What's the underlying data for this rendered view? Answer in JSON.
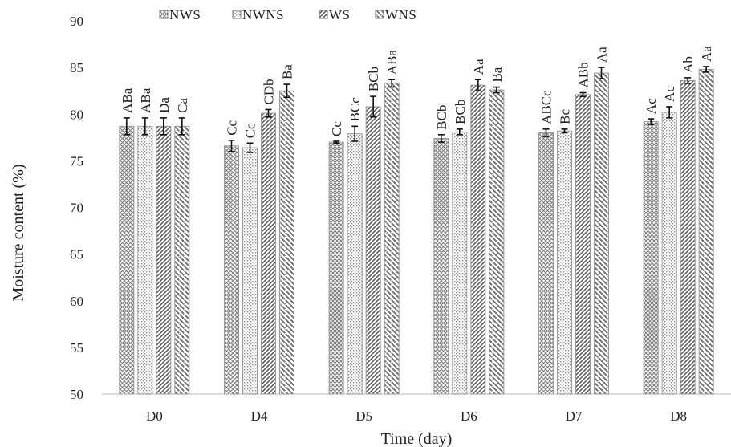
{
  "chart_data": {
    "type": "bar",
    "xlabel": "Time (day)",
    "ylabel": "Moisture content (%)",
    "ylim": [
      50,
      90
    ],
    "yticks": [
      50,
      55,
      60,
      65,
      70,
      75,
      80,
      85,
      90
    ],
    "categories": [
      "D0",
      "D4",
      "D5",
      "D6",
      "D7",
      "D8"
    ],
    "legend_position": "top-left",
    "grid": false,
    "series": [
      {
        "name": "NWS",
        "pattern": "crosshatch",
        "values": [
          78.7,
          76.6,
          77.0,
          77.4,
          78.0,
          79.2
        ],
        "errors": [
          0.9,
          0.6,
          0.1,
          0.4,
          0.4,
          0.3
        ],
        "labels": [
          "ABa",
          "Cc",
          "Cc",
          "BCb",
          "ABCc",
          "Ac"
        ]
      },
      {
        "name": "NWNS",
        "pattern": "dots",
        "values": [
          78.7,
          76.4,
          77.9,
          78.1,
          78.2,
          80.2
        ],
        "errors": [
          0.9,
          0.5,
          0.8,
          0.3,
          0.2,
          0.6
        ],
        "labels": [
          "ABa",
          "Cc",
          "BCc",
          "BCb",
          "Bc",
          "Ac"
        ]
      },
      {
        "name": "WS",
        "pattern": "diagonal",
        "values": [
          78.7,
          80.1,
          80.8,
          83.1,
          82.1,
          83.6
        ],
        "errors": [
          0.9,
          0.4,
          1.1,
          0.6,
          0.2,
          0.3
        ],
        "labels": [
          "Da",
          "CDb",
          "BCb",
          "Aa",
          "ABb",
          "Ab"
        ]
      },
      {
        "name": "WNS",
        "pattern": "wave",
        "values": [
          78.7,
          82.5,
          83.3,
          82.6,
          84.4,
          84.8
        ],
        "errors": [
          0.9,
          0.7,
          0.4,
          0.3,
          0.6,
          0.3
        ],
        "labels": [
          "Ca",
          "Ba",
          "ABa",
          "Ba",
          "Aa",
          "Aa"
        ]
      }
    ]
  }
}
